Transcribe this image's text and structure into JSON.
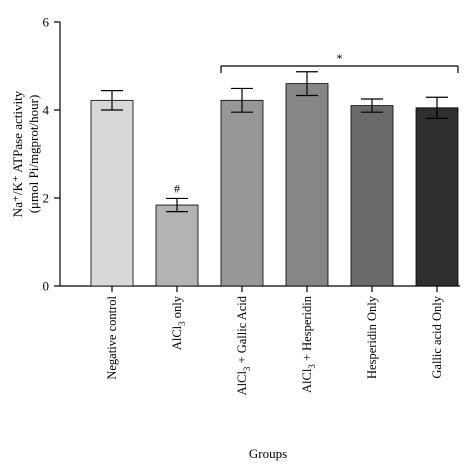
{
  "chart_data": {
    "type": "bar",
    "categories": [
      "Negative control",
      "AlCl3 only",
      "AlCl3 + Gallic Acid",
      "AlCl3 + Hesperidin",
      "Hesperidin Only",
      "Gallic acid Only"
    ],
    "category_labels": [
      {
        "main": "Negative control",
        "sub": "",
        "rest": ""
      },
      {
        "main": "AlCl",
        "sub": "3",
        "rest": " only"
      },
      {
        "main": "AlCl",
        "sub": "3",
        "rest": " + Gallic Acid"
      },
      {
        "main": "AlCl",
        "sub": "3",
        "rest": " + Hesperidin"
      },
      {
        "main": "Hesperidin Only",
        "sub": "",
        "rest": ""
      },
      {
        "main": "Gallic acid Only",
        "sub": "",
        "rest": ""
      }
    ],
    "values": [
      4.22,
      1.84,
      4.22,
      4.6,
      4.1,
      4.05
    ],
    "errors": [
      0.22,
      0.15,
      0.27,
      0.27,
      0.15,
      0.24
    ],
    "bar_colors": [
      "#d8d8d8",
      "#b3b3b3",
      "#979797",
      "#868686",
      "#6a6a6a",
      "#2f2f2f"
    ],
    "xlabel": "Groups",
    "ylabel_line1": "Na⁺/K⁺ ATPase activity",
    "ylabel_line2": "(μmol Pi/mgprot/hour)",
    "ylim": [
      0,
      6
    ],
    "yticks": [
      0,
      2,
      4,
      6
    ],
    "grid": false,
    "annotations": {
      "hash_label": "#",
      "hash_category_index": 1,
      "star_label": "*",
      "star_from_index": 2,
      "star_to_index": 5,
      "star_level": 5.0
    }
  }
}
